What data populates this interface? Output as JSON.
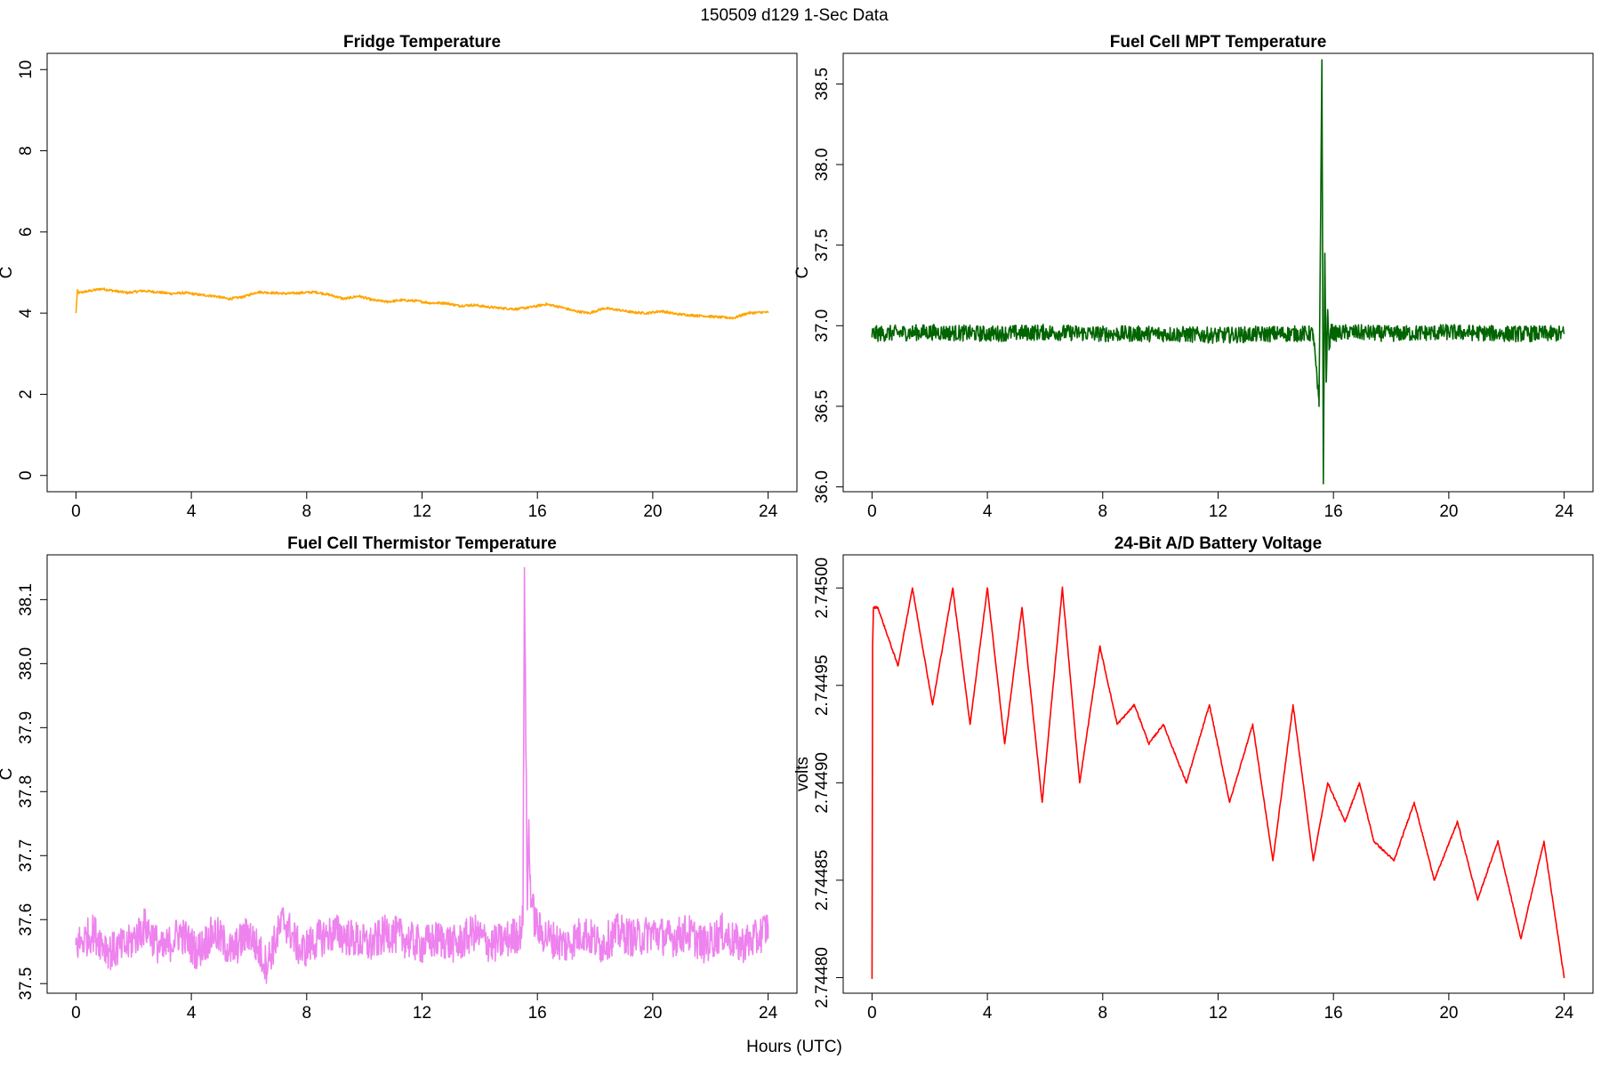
{
  "figure": {
    "title": "150509   d129   1-Sec Data",
    "xlabel": "Hours (UTC)"
  },
  "chart_data": [
    {
      "type": "line",
      "title": "Fridge Temperature",
      "xlabel": "Hours (UTC)",
      "ylabel": "C",
      "color": "#ffa500",
      "xlim": [
        -1,
        25
      ],
      "ylim": [
        -0.4,
        10.4
      ],
      "xticks": [
        0,
        4,
        8,
        12,
        16,
        20,
        24
      ],
      "yticks": [
        "0",
        "2",
        "4",
        "6",
        "8",
        "10"
      ],
      "noise": 0.03,
      "series": [
        {
          "name": "Fridge Temperature",
          "x": [
            0,
            0.05,
            0.1,
            0.5,
            0.9,
            1.3,
            1.8,
            2.3,
            2.8,
            3.3,
            3.8,
            4.3,
            4.8,
            5.3,
            5.8,
            6.3,
            6.8,
            7.3,
            7.8,
            8.3,
            8.8,
            9.3,
            9.8,
            10.3,
            10.8,
            11.3,
            11.8,
            12.3,
            12.8,
            13.3,
            13.8,
            14.3,
            14.8,
            15.3,
            15.8,
            16.3,
            16.8,
            17.3,
            17.8,
            18.3,
            18.8,
            19.3,
            19.8,
            20.3,
            20.8,
            21.3,
            21.8,
            22.3,
            22.8,
            23.3,
            23.8,
            24
          ],
          "y": [
            4.0,
            4.55,
            4.5,
            4.55,
            4.6,
            4.55,
            4.5,
            4.55,
            4.52,
            4.48,
            4.5,
            4.45,
            4.42,
            4.35,
            4.4,
            4.52,
            4.5,
            4.48,
            4.5,
            4.52,
            4.45,
            4.35,
            4.42,
            4.32,
            4.28,
            4.32,
            4.3,
            4.25,
            4.25,
            4.18,
            4.2,
            4.15,
            4.12,
            4.1,
            4.15,
            4.22,
            4.15,
            4.05,
            4.0,
            4.12,
            4.08,
            4.02,
            4.0,
            4.05,
            3.98,
            3.95,
            3.93,
            3.9,
            3.88,
            4.0,
            4.02,
            4.02
          ]
        }
      ]
    },
    {
      "type": "line",
      "title": "Fuel Cell MPT Temperature",
      "xlabel": "Hours (UTC)",
      "ylabel": "C",
      "color": "#006400",
      "xlim": [
        -1,
        25
      ],
      "ylim": [
        35.97,
        38.69
      ],
      "xticks": [
        0,
        4,
        8,
        12,
        16,
        20,
        24
      ],
      "yticks": [
        "36.0",
        "36.5",
        "37.0",
        "37.5",
        "38.0",
        "38.5"
      ],
      "noise": 0.05,
      "series": [
        {
          "name": "Fuel Cell MPT Temperature",
          "x": [
            0,
            2,
            4,
            6,
            8,
            10,
            12,
            14,
            15.3,
            15.5,
            15.6,
            15.65,
            15.7,
            15.75,
            15.8,
            15.85,
            15.9,
            16.0,
            16.5,
            18,
            20,
            22,
            24
          ],
          "y": [
            36.95,
            36.96,
            36.95,
            36.96,
            36.95,
            36.95,
            36.94,
            36.95,
            36.95,
            36.5,
            38.65,
            36.02,
            37.45,
            36.65,
            37.1,
            36.85,
            36.98,
            36.95,
            36.96,
            36.95,
            36.96,
            36.95,
            36.95
          ]
        }
      ]
    },
    {
      "type": "line",
      "title": "Fuel Cell Thermistor Temperature",
      "xlabel": "Hours (UTC)",
      "ylabel": "C",
      "color": "#ee82ee",
      "xlim": [
        -1,
        25
      ],
      "ylim": [
        37.485,
        38.17
      ],
      "xticks": [
        0,
        4,
        8,
        12,
        16,
        20,
        24
      ],
      "yticks": [
        "37.5",
        "37.6",
        "37.7",
        "37.8",
        "37.9",
        "38.0",
        "38.1"
      ],
      "noise": 0.03,
      "series": [
        {
          "name": "Fuel Cell Thermistor Temperature",
          "x": [
            0,
            0.6,
            1.2,
            1.8,
            2.4,
            3.0,
            3.6,
            4.2,
            4.8,
            5.4,
            6.0,
            6.6,
            7.2,
            7.8,
            8.4,
            9.0,
            9.6,
            10.2,
            10.8,
            11.4,
            12.0,
            12.6,
            13.2,
            13.8,
            14.4,
            15.0,
            15.4,
            15.5,
            15.55,
            15.65,
            15.7,
            15.75,
            15.8,
            15.9,
            16.1,
            16.5,
            17.0,
            17.6,
            18.2,
            18.8,
            19.4,
            20.0,
            20.6,
            21.2,
            21.8,
            22.4,
            23.0,
            23.6,
            24
          ],
          "y": [
            37.56,
            37.58,
            37.55,
            37.56,
            37.59,
            37.55,
            37.58,
            37.55,
            37.58,
            37.55,
            37.58,
            37.53,
            37.6,
            37.55,
            37.57,
            37.58,
            37.57,
            37.56,
            37.58,
            37.57,
            37.56,
            37.57,
            37.56,
            37.58,
            37.56,
            37.57,
            37.58,
            37.6,
            38.15,
            37.62,
            37.75,
            37.66,
            37.63,
            37.6,
            37.58,
            37.57,
            37.56,
            37.58,
            37.56,
            37.58,
            37.57,
            37.58,
            37.57,
            37.58,
            37.56,
            37.58,
            37.56,
            37.57,
            37.59
          ]
        }
      ]
    },
    {
      "type": "line",
      "title": "24-Bit A/D Battery Voltage",
      "xlabel": "Hours (UTC)",
      "ylabel": "volts",
      "color": "#ff0000",
      "xlim": [
        -1,
        25
      ],
      "ylim": [
        2.744792,
        2.745017
      ],
      "xticks": [
        0,
        4,
        8,
        12,
        16,
        20,
        24
      ],
      "yticks": [
        "2.74480",
        "2.74485",
        "2.74490",
        "2.74495",
        "2.74500"
      ],
      "noise": 5e-07,
      "series": [
        {
          "name": "24-Bit A/D Battery Voltage",
          "x": [
            0,
            0.02,
            0.05,
            0.2,
            0.9,
            1.4,
            2.1,
            2.8,
            3.4,
            4.0,
            4.6,
            5.2,
            5.9,
            6.6,
            7.2,
            7.9,
            8.5,
            9.1,
            9.6,
            10.1,
            10.9,
            11.7,
            12.4,
            13.2,
            13.9,
            14.6,
            15.3,
            15.8,
            16.4,
            16.9,
            17.4,
            18.1,
            18.8,
            19.5,
            20.3,
            21.0,
            21.7,
            22.5,
            23.3,
            24
          ],
          "y": [
            2.7448,
            2.74497,
            2.74499,
            2.74499,
            2.74496,
            2.745,
            2.74494,
            2.745,
            2.74493,
            2.745,
            2.74492,
            2.74499,
            2.74489,
            2.745,
            2.7449,
            2.74497,
            2.74493,
            2.74494,
            2.74492,
            2.74493,
            2.7449,
            2.74494,
            2.74489,
            2.74493,
            2.74486,
            2.74494,
            2.74486,
            2.7449,
            2.74488,
            2.7449,
            2.74487,
            2.74486,
            2.74489,
            2.74485,
            2.74488,
            2.74484,
            2.74487,
            2.74482,
            2.74487,
            2.7448
          ]
        }
      ]
    }
  ]
}
